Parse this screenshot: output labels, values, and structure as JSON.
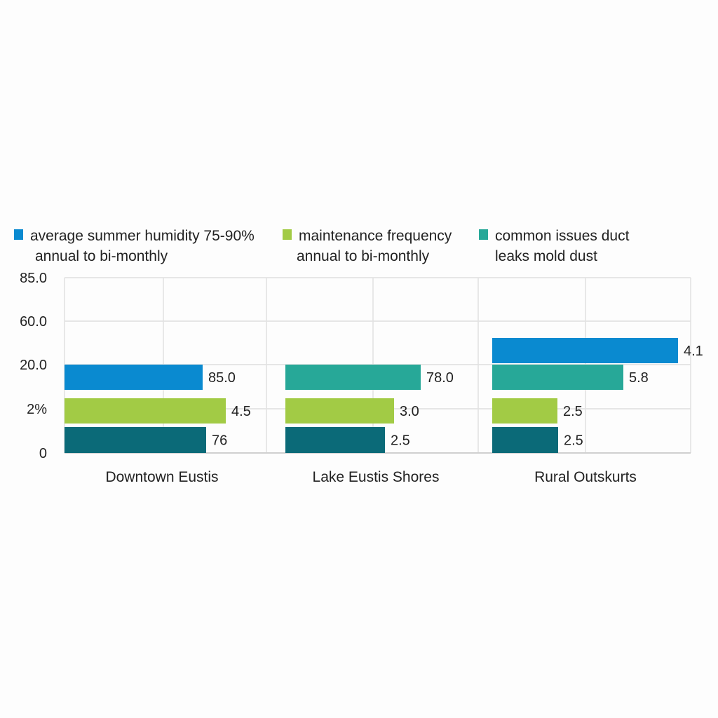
{
  "chart_data": {
    "type": "bar",
    "orientation": "horizontal",
    "title": "",
    "legend_position": "top",
    "legend": [
      {
        "key": "humidity",
        "lines": [
          "average summer humidity 75-90%",
          "annual to bi-monthly"
        ],
        "color": "#0a8ad0"
      },
      {
        "key": "maintenance",
        "lines": [
          "maintenance frequency",
          "annual to bi-monthly"
        ],
        "color": "#a2cb45"
      },
      {
        "key": "issues",
        "lines": [
          "common issues duct",
          "leaks mold dust"
        ],
        "color": "#27a898"
      }
    ],
    "y_tick_labels": [
      "85.0",
      "60.0",
      "20.0",
      "2%",
      "0"
    ],
    "categories": [
      "Downtown Eustis",
      "Lake Eustis Shores",
      "Rural Outskurts"
    ],
    "grid": true,
    "colors": {
      "blue": "#0a8ad0",
      "green": "#a2cb45",
      "teal": "#27a898",
      "dark_teal": "#0b6a78"
    },
    "groups": [
      {
        "category": "Downtown Eustis",
        "bars": [
          {
            "color": "blue",
            "label": "85.0"
          },
          {
            "color": "green",
            "label": "4.5"
          },
          {
            "color": "dark_teal",
            "label": "76"
          }
        ]
      },
      {
        "category": "Lake Eustis Shores",
        "bars": [
          {
            "color": "teal",
            "label": "78.0"
          },
          {
            "color": "green",
            "label": "3.0"
          },
          {
            "color": "dark_teal",
            "label": "2.5"
          }
        ]
      },
      {
        "category": "Rural Outskurts",
        "bars": [
          {
            "color": "blue",
            "label": "4.1"
          },
          {
            "color": "teal",
            "label": "5.8"
          },
          {
            "color": "green",
            "label": "2.5"
          },
          {
            "color": "dark_teal",
            "label": "2.5"
          }
        ]
      }
    ]
  }
}
